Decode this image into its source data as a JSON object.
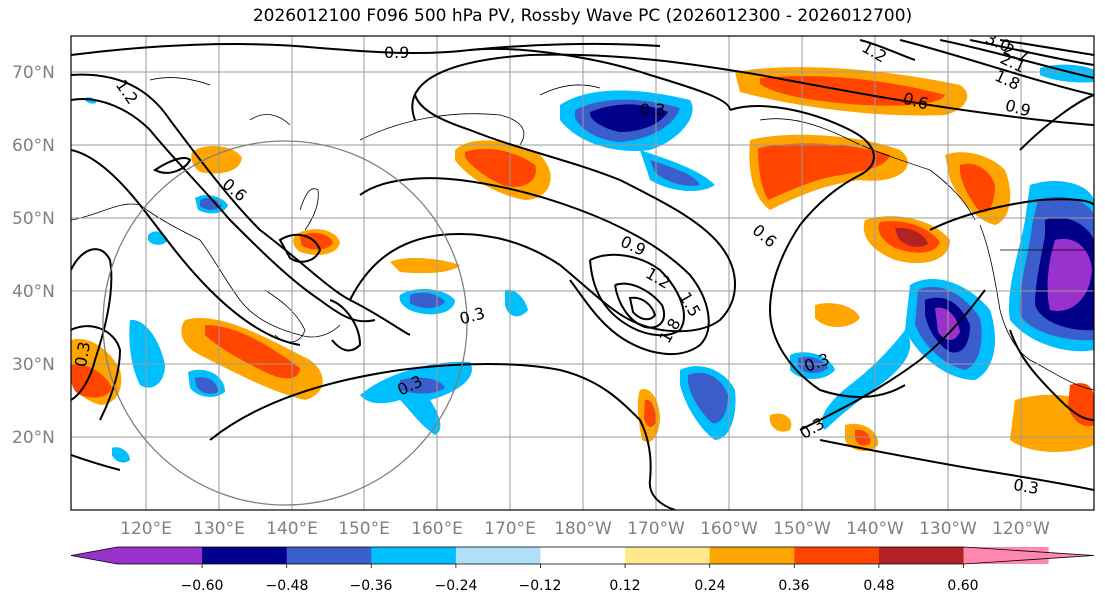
{
  "title": "2026012100 F096 500 hPa PV, Rossby Wave PC (2026012300 - 2026012700)",
  "lat_labels": [
    "70°N",
    "60°N",
    "50°N",
    "40°N",
    "30°N",
    "20°N"
  ],
  "lon_labels": [
    "120°E",
    "130°E",
    "140°E",
    "150°E",
    "160°E",
    "170°E",
    "180°W",
    "170°W",
    "160°W",
    "150°W",
    "140°W",
    "130°W",
    "120°W"
  ],
  "contour_labels": [
    "0.9",
    "1.2",
    "0.6",
    "0.3",
    "0.9",
    "1.2",
    "1.5",
    "1.8",
    "0.6",
    "0.3",
    "0.3",
    "0.3",
    "0.3",
    "0.6",
    "0.9",
    "1.2",
    "1.8",
    "2.1",
    "2.7",
    "3.0",
    "0.3",
    "0.3"
  ],
  "colorbar": {
    "ticks": [
      "−0.60",
      "−0.48",
      "−0.36",
      "−0.24",
      "−0.12",
      "0.12",
      "0.24",
      "0.36",
      "0.48",
      "0.60"
    ],
    "colors": [
      "#9932cc",
      "#00008b",
      "#3a5fcd",
      "#00bfff",
      "#b0e0f8",
      "#ffffff",
      "#ffe98a",
      "#ffa500",
      "#ff4500",
      "#b22222",
      "#ff88b0"
    ]
  },
  "colors": {
    "contour": "#000000",
    "grid": "#9a9a9a",
    "coast": "#000000",
    "circle": "#808080"
  }
}
